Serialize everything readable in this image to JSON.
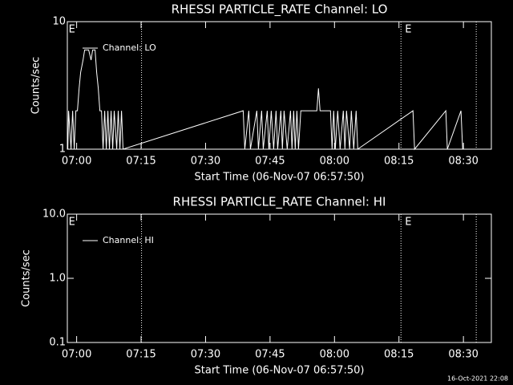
{
  "chart_data": [
    {
      "type": "line",
      "title": "RHESSI PARTICLE_RATE Channel: LO",
      "xlabel": "Start Time (06-Nov-07 06:57:50)",
      "ylabel": "Counts/sec",
      "log_y": true,
      "ylim": [
        1,
        10
      ],
      "yticks": [
        1,
        10
      ],
      "xlim": [
        "06:57:50",
        "08:36:30"
      ],
      "xticks": [
        "07:00",
        "07:15",
        "07:30",
        "07:45",
        "08:00",
        "08:15",
        "08:30"
      ],
      "legend": "upper left",
      "background": "#000000",
      "markers": [
        "07:15:06",
        "08:15:28",
        "08:32:59"
      ],
      "annotations": [
        {
          "text": "E",
          "x": "06:57:57"
        },
        {
          "text": "E",
          "x": "08:16:13"
        }
      ],
      "series": [
        {
          "name": "Channel: LO",
          "color": "#ffffff",
          "x": [
            "06:57:57",
            "06:58:08",
            "06:58:42",
            "06:59:04",
            "06:59:26",
            "06:59:49",
            "07:00:11",
            "07:00:34",
            "07:00:56",
            "07:01:29",
            "07:01:52",
            "07:02:48",
            "07:03:21",
            "07:03:44",
            "07:04:17",
            "07:04:40",
            "07:05:02",
            "07:05:24",
            "07:05:47",
            "07:06:09",
            "07:06:31",
            "07:06:54",
            "07:07:16",
            "07:07:38",
            "07:08:01",
            "07:08:23",
            "07:08:45",
            "07:09:19",
            "07:09:41",
            "07:10:04",
            "07:10:26",
            "07:10:48",
            "07:38:45",
            "07:39:08",
            "07:40:04",
            "07:40:26",
            "07:41:56",
            "07:42:18",
            "07:43:03",
            "07:43:25",
            "07:44:21",
            "07:44:43",
            "07:45:17",
            "07:45:50",
            "07:46:24",
            "07:46:46",
            "07:47:31",
            "07:47:53",
            "07:48:16",
            "07:49:00",
            "07:49:45",
            "07:50:07",
            "07:50:30",
            "07:50:52",
            "07:51:15",
            "07:51:37",
            "07:52:10",
            "07:55:54",
            "07:56:16",
            "07:56:39",
            "07:59:04",
            "07:59:26",
            "07:59:49",
            "08:00:11",
            "08:00:45",
            "08:01:18",
            "08:02:03",
            "08:02:25",
            "08:02:48",
            "08:03:32",
            "08:03:55",
            "08:04:28",
            "08:05:02",
            "08:05:24",
            "08:18:16",
            "08:18:38",
            "08:25:54",
            "08:26:16",
            "08:29:26",
            "08:29:49",
            "08:33:44"
          ],
          "values": [
            1,
            2,
            1,
            2,
            1,
            2,
            2,
            3,
            4,
            5,
            6,
            6,
            5,
            6,
            6,
            4,
            3,
            2,
            2,
            1,
            2,
            1,
            2,
            1,
            2,
            1,
            2,
            1,
            2,
            1,
            2,
            1,
            2,
            1,
            2,
            1,
            2,
            1,
            2,
            1,
            2,
            1,
            2,
            1,
            2,
            1,
            2,
            1,
            2,
            1,
            2,
            1,
            2,
            1,
            2,
            1,
            2,
            2,
            3,
            2,
            2,
            1,
            2,
            1,
            2,
            1,
            2,
            1,
            2,
            1,
            2,
            1,
            2,
            1,
            2,
            1,
            2,
            1,
            2,
            1,
            1
          ]
        }
      ]
    },
    {
      "type": "line",
      "title": "RHESSI PARTICLE_RATE Channel: HI",
      "xlabel": "Start Time (06-Nov-07 06:57:50)",
      "ylabel": "Counts/sec",
      "log_y": true,
      "ylim": [
        0.1,
        10
      ],
      "yticks": [
        0.1,
        {
          "value": 1,
          "label": "1.0"
        },
        {
          "value": 10,
          "label": "10.0"
        }
      ],
      "xlim": [
        "06:57:50",
        "08:36:30"
      ],
      "xticks": [
        "07:00",
        "07:15",
        "07:30",
        "07:45",
        "08:00",
        "08:15",
        "08:30"
      ],
      "legend": "upper left",
      "background": "#000000",
      "markers": [
        "07:15:06",
        "08:15:28",
        "08:32:59"
      ],
      "annotations": [
        {
          "text": "E",
          "x": "06:57:57"
        },
        {
          "text": "E",
          "x": "08:16:13"
        }
      ],
      "series": [
        {
          "name": "Channel: HI",
          "color": "#ffffff",
          "x": [],
          "values": []
        }
      ]
    }
  ],
  "footer": "16-Oct-2021 22:08"
}
